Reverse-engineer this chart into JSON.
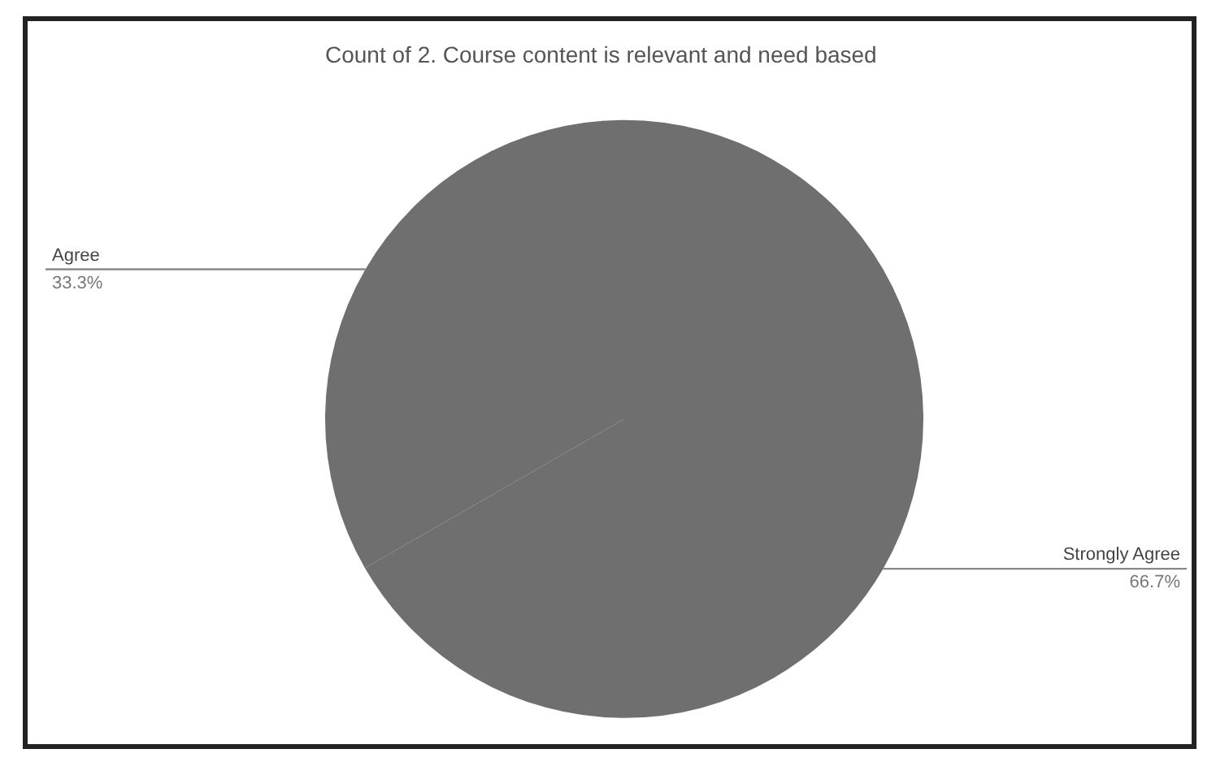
{
  "chart_data": {
    "type": "pie",
    "title": "Count of 2. Course content is relevant and need based",
    "categories": [
      "Strongly Agree",
      "Agree"
    ],
    "values": [
      66.7,
      33.3
    ],
    "colors": [
      "#6f6f6f",
      "#6f6f6f"
    ],
    "value_labels": [
      "66.7%",
      "33.3%"
    ],
    "legend": false
  }
}
